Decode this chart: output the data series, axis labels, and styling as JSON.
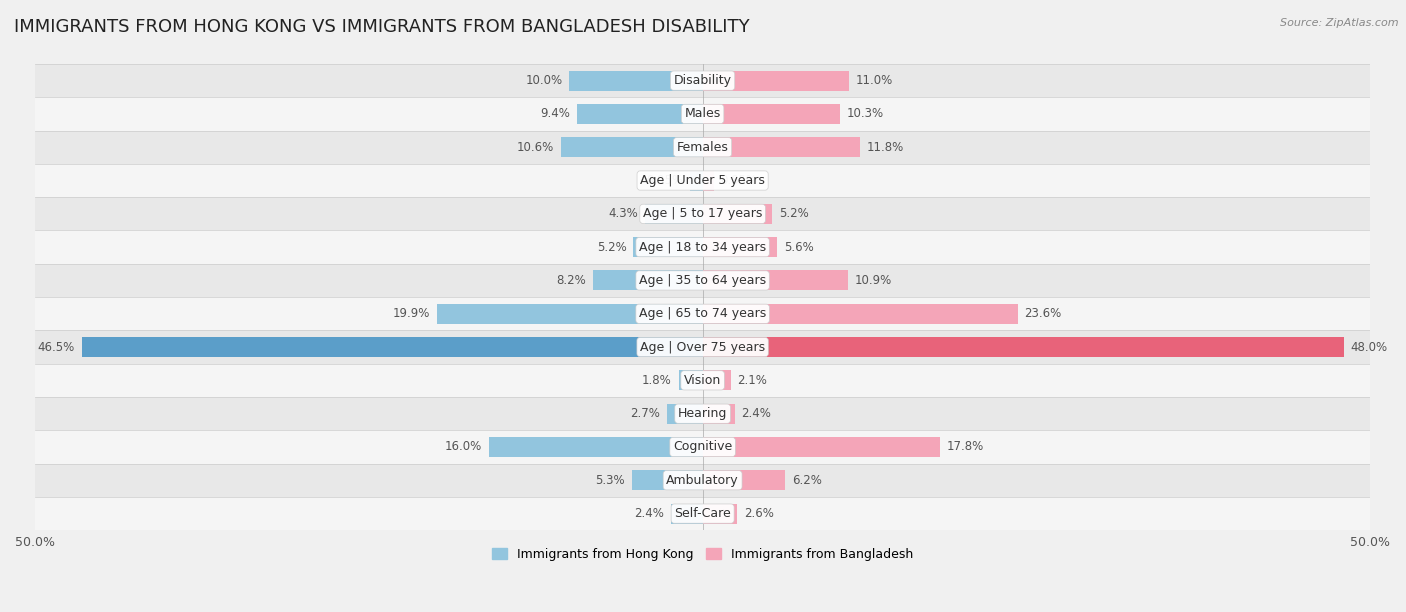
{
  "title": "IMMIGRANTS FROM HONG KONG VS IMMIGRANTS FROM BANGLADESH DISABILITY",
  "source": "Source: ZipAtlas.com",
  "categories": [
    "Disability",
    "Males",
    "Females",
    "Age | Under 5 years",
    "Age | 5 to 17 years",
    "Age | 18 to 34 years",
    "Age | 35 to 64 years",
    "Age | 65 to 74 years",
    "Age | Over 75 years",
    "Vision",
    "Hearing",
    "Cognitive",
    "Ambulatory",
    "Self-Care"
  ],
  "hk_values": [
    10.0,
    9.4,
    10.6,
    0.95,
    4.3,
    5.2,
    8.2,
    19.9,
    46.5,
    1.8,
    2.7,
    16.0,
    5.3,
    2.4
  ],
  "bd_values": [
    11.0,
    10.3,
    11.8,
    0.85,
    5.2,
    5.6,
    10.9,
    23.6,
    48.0,
    2.1,
    2.4,
    17.8,
    6.2,
    2.6
  ],
  "hk_color": "#92c5de",
  "bd_color": "#f4a5b8",
  "hk_color_strong": "#5b9ec9",
  "bd_color_strong": "#e8637a",
  "hk_label": "Immigrants from Hong Kong",
  "bd_label": "Immigrants from Bangladesh",
  "axis_limit": 50.0,
  "background_color": "#f0f0f0",
  "row_bg_dark": "#e8e8e8",
  "row_bg_light": "#f5f5f5",
  "title_fontsize": 13,
  "label_fontsize": 9,
  "value_fontsize": 8.5,
  "legend_fontsize": 9,
  "source_fontsize": 8,
  "strong_row_index": 8
}
